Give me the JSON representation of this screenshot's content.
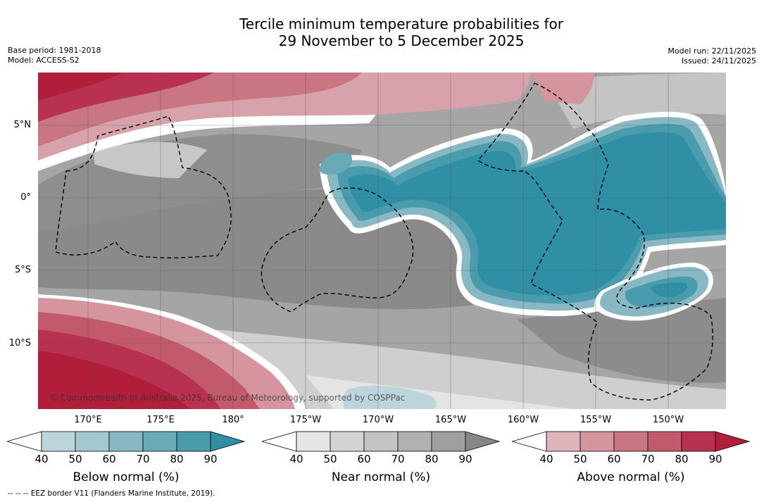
{
  "title": {
    "line1": "Tercile minimum temperature probabilities for",
    "line2": "29 November to 5 December 2025"
  },
  "meta": {
    "base_period": "Base period: 1981-2018",
    "model": "Model: ACCESS-S2",
    "model_run": "Model run: 22/11/2025",
    "issued": "Issued: 24/11/2025"
  },
  "axes": {
    "lat_labels": [
      "5°N",
      "0°",
      "5°S",
      "10°S"
    ],
    "lon_labels": [
      "170°E",
      "175°E",
      "180°",
      "175°W",
      "170°W",
      "165°W",
      "160°W",
      "155°W",
      "150°W"
    ]
  },
  "copyright": "© Commonwealth of Australia 2025, Bureau of Meteorology, supported by COSPPac",
  "colorbars": [
    {
      "label": "Below normal (%)",
      "ticks": [
        "40",
        "50",
        "60",
        "70",
        "80",
        "90"
      ],
      "colors": [
        "#bcd5dc",
        "#a5c7cf",
        "#88b8c3",
        "#6aaab6",
        "#4a9bab",
        "#2e8fa5"
      ]
    },
    {
      "label": "Near normal (%)",
      "ticks": [
        "40",
        "50",
        "60",
        "70",
        "80",
        "90"
      ],
      "colors": [
        "#e6e6e6",
        "#d4d4d4",
        "#c3c3c3",
        "#b1b1b1",
        "#9f9f9f",
        "#878787"
      ]
    },
    {
      "label": "Above normal (%)",
      "ticks": [
        "40",
        "50",
        "60",
        "70",
        "80",
        "90"
      ],
      "colors": [
        "#e0b4bb",
        "#d4959f",
        "#c97683",
        "#c35a6b",
        "#b83150",
        "#b01e3a"
      ]
    }
  ],
  "footer": "--  --  -- EEZ border V11 (Flanders Marine Institute, 2019)."
}
